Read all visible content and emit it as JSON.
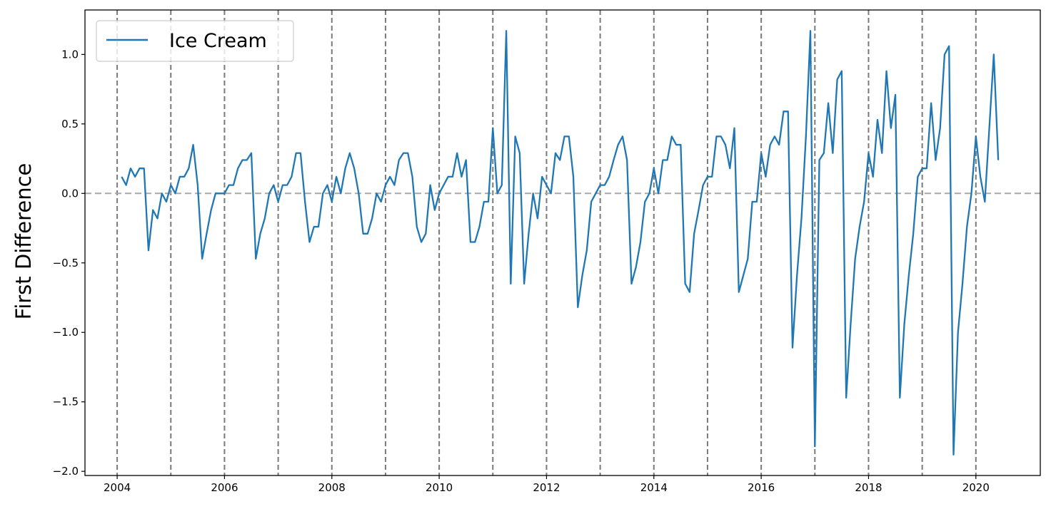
{
  "chart_data": {
    "type": "line",
    "title": "",
    "xlabel": "",
    "ylabel": "First Difference",
    "xlim": [
      2003.4,
      2021.2
    ],
    "ylim": [
      -2.03,
      1.32
    ],
    "x_ticks": [
      2004,
      2006,
      2008,
      2010,
      2012,
      2014,
      2016,
      2018,
      2020
    ],
    "x_tick_labels": [
      "2004",
      "2006",
      "2008",
      "2010",
      "2012",
      "2014",
      "2016",
      "2018",
      "2020"
    ],
    "y_ticks": [
      -2.0,
      -1.5,
      -1.0,
      -0.5,
      0.0,
      0.5,
      1.0
    ],
    "y_tick_labels": [
      "−2.0",
      "−1.5",
      "−1.0",
      "−0.5",
      "0.0",
      "0.5",
      "1.0"
    ],
    "year_lines": [
      2004,
      2005,
      2006,
      2007,
      2008,
      2009,
      2010,
      2011,
      2012,
      2013,
      2014,
      2015,
      2016,
      2017,
      2018,
      2019,
      2020
    ],
    "zero_line": 0,
    "grid": false,
    "legend_position": "top-left",
    "series": [
      {
        "name": "Ice Cream",
        "color": "#1f77b4",
        "start": "2004-02",
        "frequency": "monthly",
        "values": [
          0.12,
          0.06,
          0.18,
          0.12,
          0.18,
          0.18,
          -0.41,
          -0.12,
          -0.18,
          0.0,
          -0.06,
          0.06,
          0.0,
          0.12,
          0.12,
          0.18,
          0.35,
          0.06,
          -0.47,
          -0.29,
          -0.12,
          0.0,
          0.0,
          0.0,
          0.06,
          0.06,
          0.18,
          0.24,
          0.24,
          0.29,
          -0.47,
          -0.29,
          -0.18,
          0.0,
          0.06,
          -0.06,
          0.06,
          0.06,
          0.12,
          0.29,
          0.29,
          -0.06,
          -0.35,
          -0.24,
          -0.24,
          0.0,
          0.06,
          -0.06,
          0.12,
          0.0,
          0.18,
          0.29,
          0.18,
          0.0,
          -0.29,
          -0.29,
          -0.18,
          0.0,
          -0.06,
          0.06,
          0.12,
          0.06,
          0.24,
          0.29,
          0.29,
          0.12,
          -0.24,
          -0.35,
          -0.29,
          0.06,
          -0.12,
          0.0,
          0.06,
          0.12,
          0.12,
          0.29,
          0.12,
          0.24,
          -0.35,
          -0.35,
          -0.24,
          -0.06,
          -0.06,
          0.47,
          0.0,
          0.06,
          1.17,
          -0.65,
          0.41,
          0.29,
          -0.65,
          -0.29,
          0.0,
          -0.18,
          0.12,
          0.06,
          0.0,
          0.29,
          0.24,
          0.41,
          0.41,
          0.12,
          -0.82,
          -0.59,
          -0.41,
          -0.06,
          0.0,
          0.06,
          0.06,
          0.12,
          0.24,
          0.35,
          0.41,
          0.24,
          -0.65,
          -0.53,
          -0.35,
          -0.06,
          0.0,
          0.18,
          0.0,
          0.24,
          0.24,
          0.41,
          0.35,
          0.35,
          -0.65,
          -0.71,
          -0.29,
          -0.12,
          0.06,
          0.12,
          0.12,
          0.41,
          0.41,
          0.35,
          0.18,
          0.47,
          -0.71,
          -0.59,
          -0.47,
          -0.06,
          -0.06,
          0.29,
          0.12,
          0.35,
          0.41,
          0.35,
          0.59,
          0.59,
          -1.11,
          -0.59,
          -0.18,
          0.41,
          1.17,
          -1.82,
          0.24,
          0.29,
          0.65,
          0.29,
          0.82,
          0.88,
          -1.47,
          -0.94,
          -0.47,
          -0.24,
          -0.06,
          0.29,
          0.12,
          0.53,
          0.29,
          0.88,
          0.47,
          0.71,
          -1.47,
          -0.94,
          -0.59,
          -0.29,
          0.12,
          0.18,
          0.18,
          0.65,
          0.24,
          0.47,
          1.0,
          1.06,
          -1.88,
          -1.0,
          -0.65,
          -0.24,
          0.0,
          0.41,
          0.12,
          -0.06,
          0.47,
          1.0,
          0.24
        ]
      }
    ]
  }
}
